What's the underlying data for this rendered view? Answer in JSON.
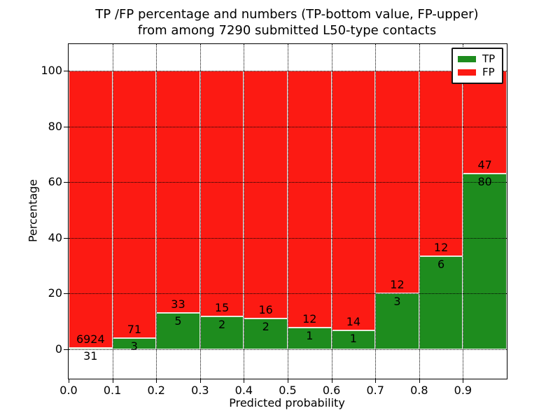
{
  "chart_data": {
    "type": "bar",
    "stacked": true,
    "title_line1": "TP /FP percentage and numbers (TP-bottom value, FP-upper)",
    "title_line2": "from among 7290 submitted L50-type contacts",
    "xlabel": "Predicted probability",
    "ylabel": "Percentage",
    "categories": [
      "0.0-0.1",
      "0.1-0.2",
      "0.2-0.3",
      "0.3-0.4",
      "0.4-0.5",
      "0.5-0.6",
      "0.6-0.7",
      "0.7-0.8",
      "0.8-0.9",
      "0.9-1.0"
    ],
    "series": [
      {
        "name": "TP",
        "color": "#1e8c1e",
        "counts": [
          31,
          3,
          5,
          2,
          2,
          1,
          1,
          3,
          6,
          80
        ],
        "percent_of_bin": [
          0.45,
          4.05,
          13.16,
          11.76,
          11.11,
          7.69,
          6.67,
          20.0,
          33.33,
          62.99
        ]
      },
      {
        "name": "FP",
        "color": "#fc1a13",
        "counts": [
          6924,
          71,
          33,
          15,
          16,
          12,
          14,
          12,
          12,
          47
        ],
        "percent_of_bin": [
          99.55,
          95.95,
          86.84,
          88.24,
          88.89,
          92.31,
          93.33,
          80.0,
          66.67,
          37.01
        ]
      }
    ],
    "bar_total_percent": 100,
    "xticks": [
      "0.0",
      "0.1",
      "0.2",
      "0.3",
      "0.4",
      "0.5",
      "0.6",
      "0.7",
      "0.8",
      "0.9"
    ],
    "yticks": [
      0,
      20,
      40,
      60,
      80,
      100
    ],
    "xlim": [
      0.0,
      1.0
    ],
    "ylim": [
      -10.6,
      109.6
    ],
    "grid": "dotted black gridlines on both axes, drawn over bars; bars have white edges",
    "legend": {
      "position": "upper right",
      "entries": [
        "TP",
        "FP"
      ]
    }
  }
}
